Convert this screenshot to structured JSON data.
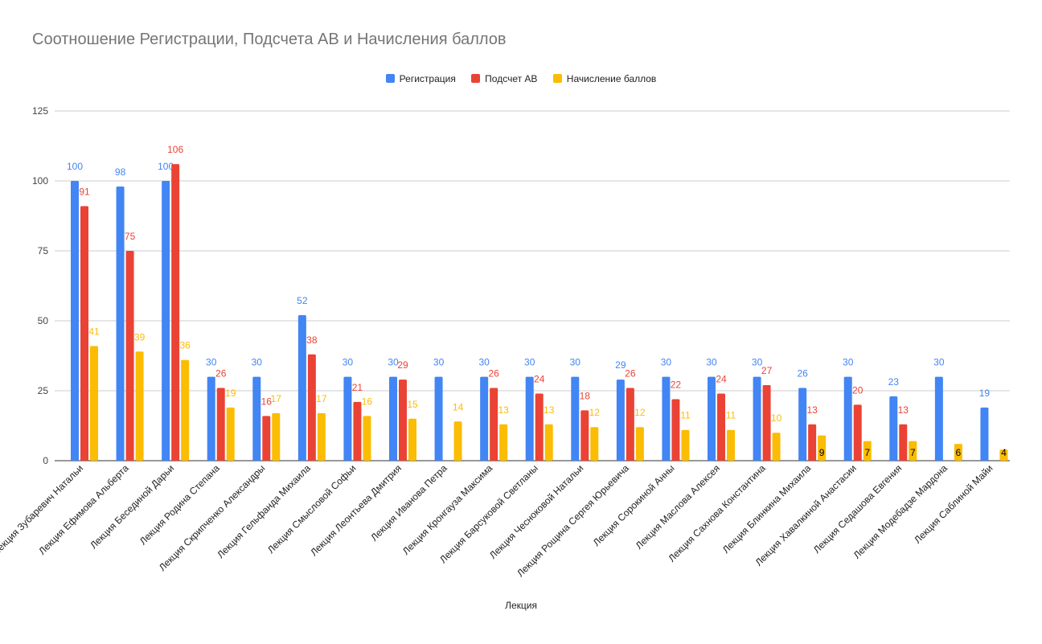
{
  "chart_data": {
    "type": "bar",
    "title": "Соотношение Регистрации, Подсчета АВ и Начисления баллов",
    "xlabel": "Лекция",
    "ylabel": "",
    "ylim": [
      0,
      125
    ],
    "yticks": [
      0,
      25,
      50,
      75,
      100,
      125
    ],
    "grid": true,
    "legend_position": "top",
    "categories": [
      "Лекция Зубаревич Натальи",
      "Лекция Ефимова Альберта",
      "Лекция Бесединой Дарьи",
      "Лекция Родина Степана",
      "Лекция Скрипченко Александры",
      "Лекция Гельфанда Михаила",
      "Лекция Смысловой Софьи",
      "Лекция Леонтьева Дмитрия",
      "Лекция Иванова Петра",
      "Лекция Кронгауза Максима",
      "Лекция Барсуковой Светланы",
      "Лекция Чесноковой Натальи",
      "Лекция Рощина Сергея Юрьевича",
      "Лекция Сорокиной Анны",
      "Лекция Маслова Алексея",
      "Лекция Сахнова Константина",
      "Лекция Блинкина Михаила",
      "Лекция Хавалкиной Анастасии",
      "Лекция Седашова Евгения",
      "Лекция Модебадзе Мардона",
      "Лекция Саблиной Майи"
    ],
    "series": [
      {
        "name": "Регистрация",
        "color": "#4285f4",
        "values": [
          100,
          98,
          100,
          30,
          30,
          52,
          30,
          30,
          30,
          30,
          30,
          30,
          29,
          30,
          30,
          30,
          26,
          30,
          23,
          30,
          19
        ],
        "labels": [
          "100",
          "98",
          "100",
          "30",
          "30",
          "52",
          "30",
          "30",
          "30",
          "30",
          "30",
          "30",
          "29",
          "30",
          "30",
          "30",
          "26",
          "30",
          "23",
          "30",
          "19"
        ]
      },
      {
        "name": "Подсчет АВ",
        "color": "#ea4335",
        "values": [
          91,
          75,
          106,
          26,
          16,
          38,
          21,
          29,
          null,
          26,
          24,
          18,
          26,
          22,
          24,
          27,
          13,
          20,
          13,
          null,
          null
        ],
        "labels": [
          "91",
          "75",
          "106",
          "26",
          "16",
          "38",
          "21",
          "29",
          "",
          "26",
          "24",
          "18",
          "26",
          "22",
          "24",
          "27",
          "13",
          "20",
          "13",
          "",
          ""
        ]
      },
      {
        "name": "Начисление баллов",
        "color": "#fbbc04",
        "values": [
          41,
          39,
          36,
          19,
          17,
          17,
          16,
          15,
          14,
          13,
          13,
          12,
          12,
          11,
          11,
          10,
          9,
          7,
          7,
          6,
          4
        ],
        "labels": [
          "41",
          "39",
          "36",
          "19",
          "17",
          "17",
          "16",
          "15",
          "14",
          "13",
          "13",
          "12",
          "12",
          "11",
          "11",
          "10",
          "9",
          "7",
          "7",
          "6",
          "4"
        ]
      }
    ]
  }
}
